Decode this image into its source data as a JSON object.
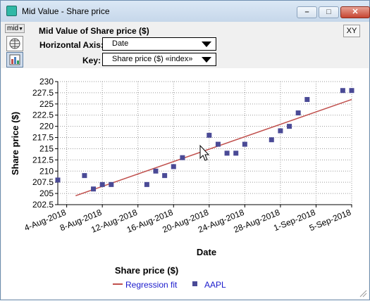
{
  "window": {
    "title": "Mid Value - Share price",
    "minimize_icon": "minimize-icon",
    "maximize_icon": "maximize-icon",
    "close_icon": "close-icon"
  },
  "toolbar": {
    "mid_label": "mid",
    "header_title": "Mid Value of Share price ($)",
    "xy_label": "XY",
    "horizontal_axis_label": "Horizontal Axis:",
    "horizontal_axis_value": "Date",
    "key_label": "Key:",
    "key_value": "Share price ($) «index»",
    "table_view_icon": "table-view-icon",
    "graph_view_icon": "graph-view-icon"
  },
  "colors": {
    "points": "#4a4a96",
    "fit_line": "#c0504d",
    "legend_text": "#1a1acc"
  },
  "chart_data": {
    "type": "scatter",
    "xlabel": "Date",
    "ylabel": "Share price ($)",
    "x_ticks": [
      "4-Aug-2018",
      "8-Aug-2018",
      "12-Aug-2018",
      "16-Aug-2018",
      "20-Aug-2018",
      "24-Aug-2018",
      "28-Aug-2018",
      "1-Sep-2018",
      "5-Sep-2018"
    ],
    "y_ticks": [
      "202.5",
      "205",
      "207.5",
      "210",
      "212.5",
      "215",
      "217.5",
      "220",
      "222.5",
      "225",
      "227.5",
      "230"
    ],
    "xlim": [
      "2018-08-03",
      "2018-09-05"
    ],
    "ylim": [
      202.5,
      230
    ],
    "grid": true,
    "legend_title": "Share price ($)",
    "legend_position": "bottom",
    "series": [
      {
        "name": "AAPL",
        "type": "scatter",
        "points": [
          [
            "2018-08-03",
            208.0
          ],
          [
            "2018-08-06",
            209.0
          ],
          [
            "2018-08-07",
            206.0
          ],
          [
            "2018-08-08",
            207.0
          ],
          [
            "2018-08-09",
            207.0
          ],
          [
            "2018-08-13",
            207.0
          ],
          [
            "2018-08-14",
            210.0
          ],
          [
            "2018-08-15",
            209.0
          ],
          [
            "2018-08-16",
            211.0
          ],
          [
            "2018-08-17",
            213.0
          ],
          [
            "2018-08-20",
            218.0
          ],
          [
            "2018-08-21",
            216.0
          ],
          [
            "2018-08-22",
            214.0
          ],
          [
            "2018-08-23",
            214.0
          ],
          [
            "2018-08-24",
            216.0
          ],
          [
            "2018-08-27",
            217.0
          ],
          [
            "2018-08-28",
            219.0
          ],
          [
            "2018-08-29",
            220.0
          ],
          [
            "2018-08-30",
            223.0
          ],
          [
            "2018-08-31",
            226.0
          ],
          [
            "2018-09-04",
            228.0
          ],
          [
            "2018-09-05",
            228.0
          ]
        ]
      },
      {
        "name": "Regression fit",
        "type": "line",
        "points": [
          [
            "2018-08-05",
            204.5
          ],
          [
            "2018-09-05",
            226.0
          ]
        ]
      }
    ]
  }
}
